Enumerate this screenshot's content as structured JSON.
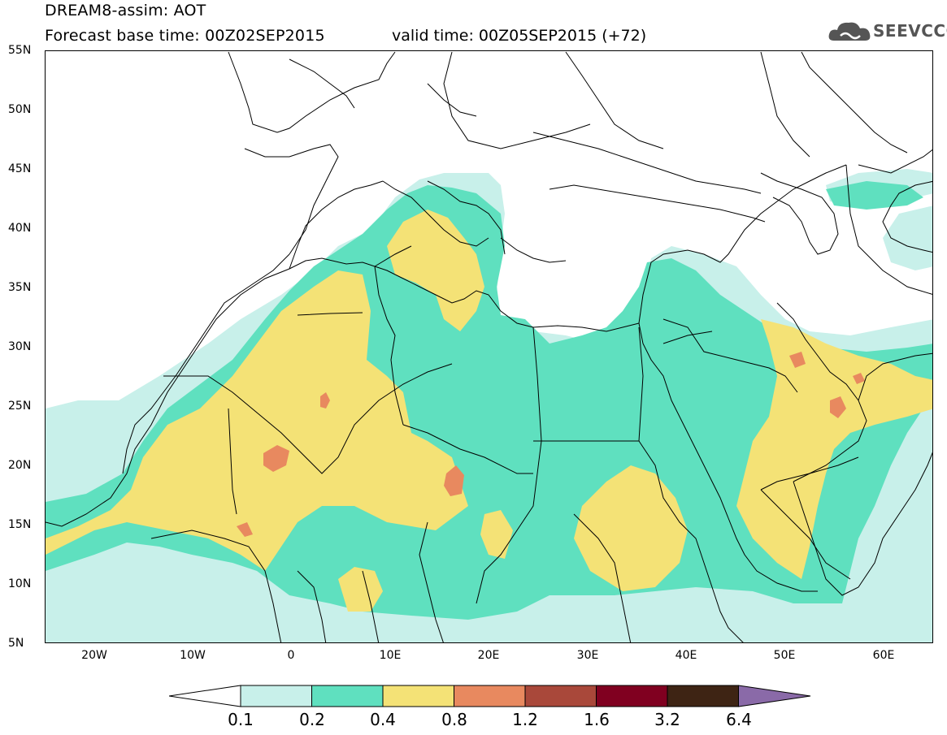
{
  "header": {
    "title": "DREAM8-assim: AOT",
    "base_time": "Forecast base time: 00Z02SEP2015",
    "valid_time": "valid time: 00Z05SEP2015 (+72)",
    "logo_text": "SEEVCCC"
  },
  "map": {
    "lat_labels": [
      "55N",
      "50N",
      "45N",
      "40N",
      "35N",
      "30N",
      "25N",
      "20N",
      "15N",
      "10N",
      "5N"
    ],
    "lon_labels": [
      "20W",
      "10W",
      "0",
      "10E",
      "20E",
      "30E",
      "40E",
      "50E",
      "60E"
    ],
    "region": "North Africa, Mediterranean, Middle East",
    "field_colors": {
      "c01": "#c8f0ea",
      "c02": "#5fe0bf",
      "c04": "#f4e276",
      "c08": "#e8895f",
      "c12": "#a9483a",
      "c16": "#800020",
      "c32": "#3e2414",
      "c64": "#8a6aa8"
    }
  },
  "colorbar": {
    "labels": [
      "0.1",
      "0.2",
      "0.4",
      "0.8",
      "1.2",
      "1.6",
      "3.2",
      "6.4"
    ],
    "colors": [
      "#c8f0ea",
      "#5fe0bf",
      "#f4e276",
      "#e8895f",
      "#a9483a",
      "#800020",
      "#3e2414"
    ],
    "under_color": "#ffffff",
    "over_color": "#8a6aa8"
  }
}
